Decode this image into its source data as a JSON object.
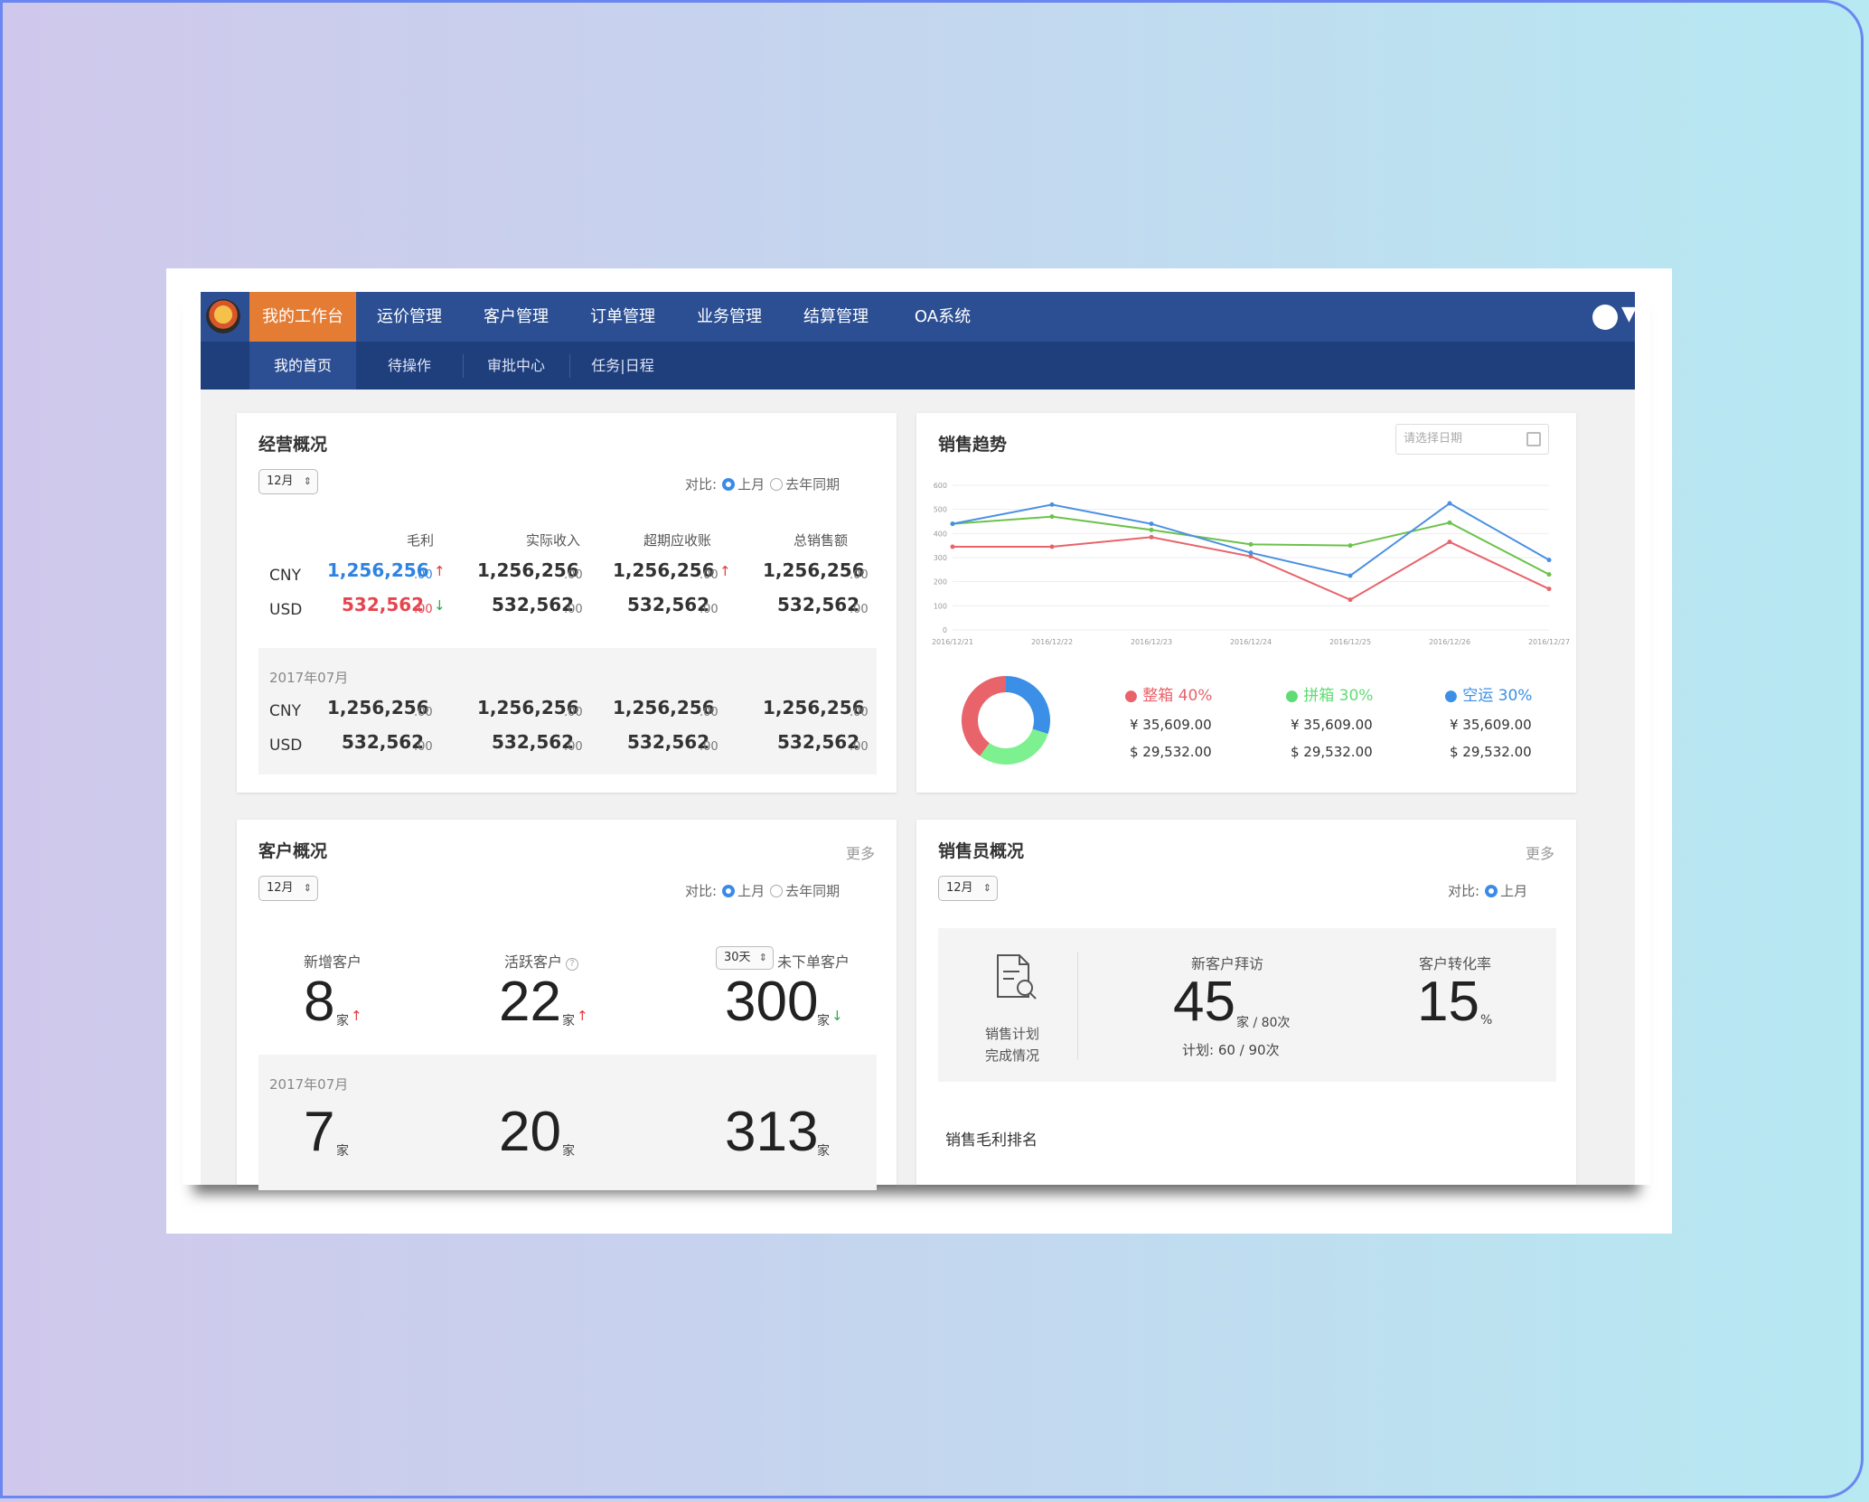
{
  "nav": {
    "items": [
      "我的工作台",
      "运价管理",
      "客户管理",
      "订单管理",
      "业务管理",
      "结算管理",
      "OA系统"
    ],
    "sub_items": [
      "我的首页",
      "待操作",
      "审批中心",
      "任务|日程"
    ]
  },
  "business": {
    "title": "经营概况",
    "month": "12月",
    "compare_label": "对比:",
    "opt_last_month": "上月",
    "opt_last_year": "去年同期",
    "headers": [
      "毛利",
      "实际收入",
      "超期应收账",
      "总销售额"
    ],
    "rows": [
      {
        "currency": "CNY",
        "values": [
          "1,256,256",
          "1,256,256",
          "1,256,256",
          "1,256,256"
        ],
        "dec": ".00"
      },
      {
        "currency": "USD",
        "values": [
          "532,562",
          "532,562",
          "532,562",
          "532,562"
        ],
        "dec": ".00"
      }
    ],
    "prev_period": "2017年07月",
    "prev_rows": [
      {
        "currency": "CNY",
        "values": [
          "1,256,256",
          "1,256,256",
          "1,256,256",
          "1,256,256"
        ],
        "dec": ".00"
      },
      {
        "currency": "USD",
        "values": [
          "532,562",
          "532,562",
          "532,562",
          "532,562"
        ],
        "dec": ".00"
      }
    ]
  },
  "sales_trend": {
    "title": "销售趋势",
    "date_placeholder": "请选择日期",
    "legend": [
      {
        "name": "整箱 40%",
        "color": "#e8636a",
        "cny": "¥ 35,609.00",
        "usd": "$ 29,532.00"
      },
      {
        "name": "拼箱 30%",
        "color": "#5fdc74",
        "cny": "¥ 35,609.00",
        "usd": "$ 29,532.00"
      },
      {
        "name": "空运 30%",
        "color": "#3b8fe6",
        "cny": "¥ 35,609.00",
        "usd": "$ 29,532.00"
      }
    ]
  },
  "chart_data": [
    {
      "type": "line",
      "x": [
        "2016/12/21",
        "2016/12/22",
        "2016/12/23",
        "2016/12/24",
        "2016/12/25",
        "2016/12/26",
        "2016/12/27"
      ],
      "y_ticks": [
        "0",
        "100",
        "200",
        "300",
        "400",
        "500",
        "600"
      ],
      "ylim": [
        0,
        600
      ],
      "grid": true,
      "series": [
        {
          "color": "#e8636a",
          "values": [
            345,
            345,
            385,
            305,
            125,
            365,
            170
          ]
        },
        {
          "color": "#6cc24a",
          "values": [
            440,
            470,
            415,
            355,
            350,
            445,
            230
          ]
        },
        {
          "color": "#4a90e2",
          "values": [
            440,
            520,
            440,
            320,
            225,
            525,
            290
          ]
        }
      ]
    },
    {
      "type": "pie",
      "slices": [
        {
          "name": "整箱",
          "value": 40,
          "color": "#e8636a"
        },
        {
          "name": "拼箱",
          "value": 30,
          "color": "#7df08f"
        },
        {
          "name": "空运",
          "value": 30,
          "color": "#3b8fe6"
        }
      ]
    }
  ],
  "customers": {
    "title": "客户概况",
    "more": "更多",
    "month": "12月",
    "compare_label": "对比:",
    "opt_last_month": "上月",
    "opt_last_year": "去年同期",
    "new_label": "新增客户",
    "active_label": "活跃客户",
    "days_select": "30天",
    "no_order_label": "未下单客户",
    "new_value": "8",
    "active_value": "22",
    "no_order_value": "300",
    "unit": "家",
    "prev_period": "2017年07月",
    "prev_new": "7",
    "prev_active": "20",
    "prev_no_order": "313"
  },
  "sales_staff": {
    "title": "销售员概况",
    "more": "更多",
    "month": "12月",
    "compare_label": "对比:",
    "opt_last_month": "上月",
    "plan_line1": "销售计划",
    "plan_line2": "完成情况",
    "visit_label": "新客户拜访",
    "visit_value": "45",
    "visit_suffix": "家 / 80次",
    "visit_plan": "计划: 60 / 90次",
    "conversion_label": "客户转化率",
    "conversion_value": "15",
    "conversion_unit": "%",
    "ranking_title": "销售毛利排名"
  }
}
